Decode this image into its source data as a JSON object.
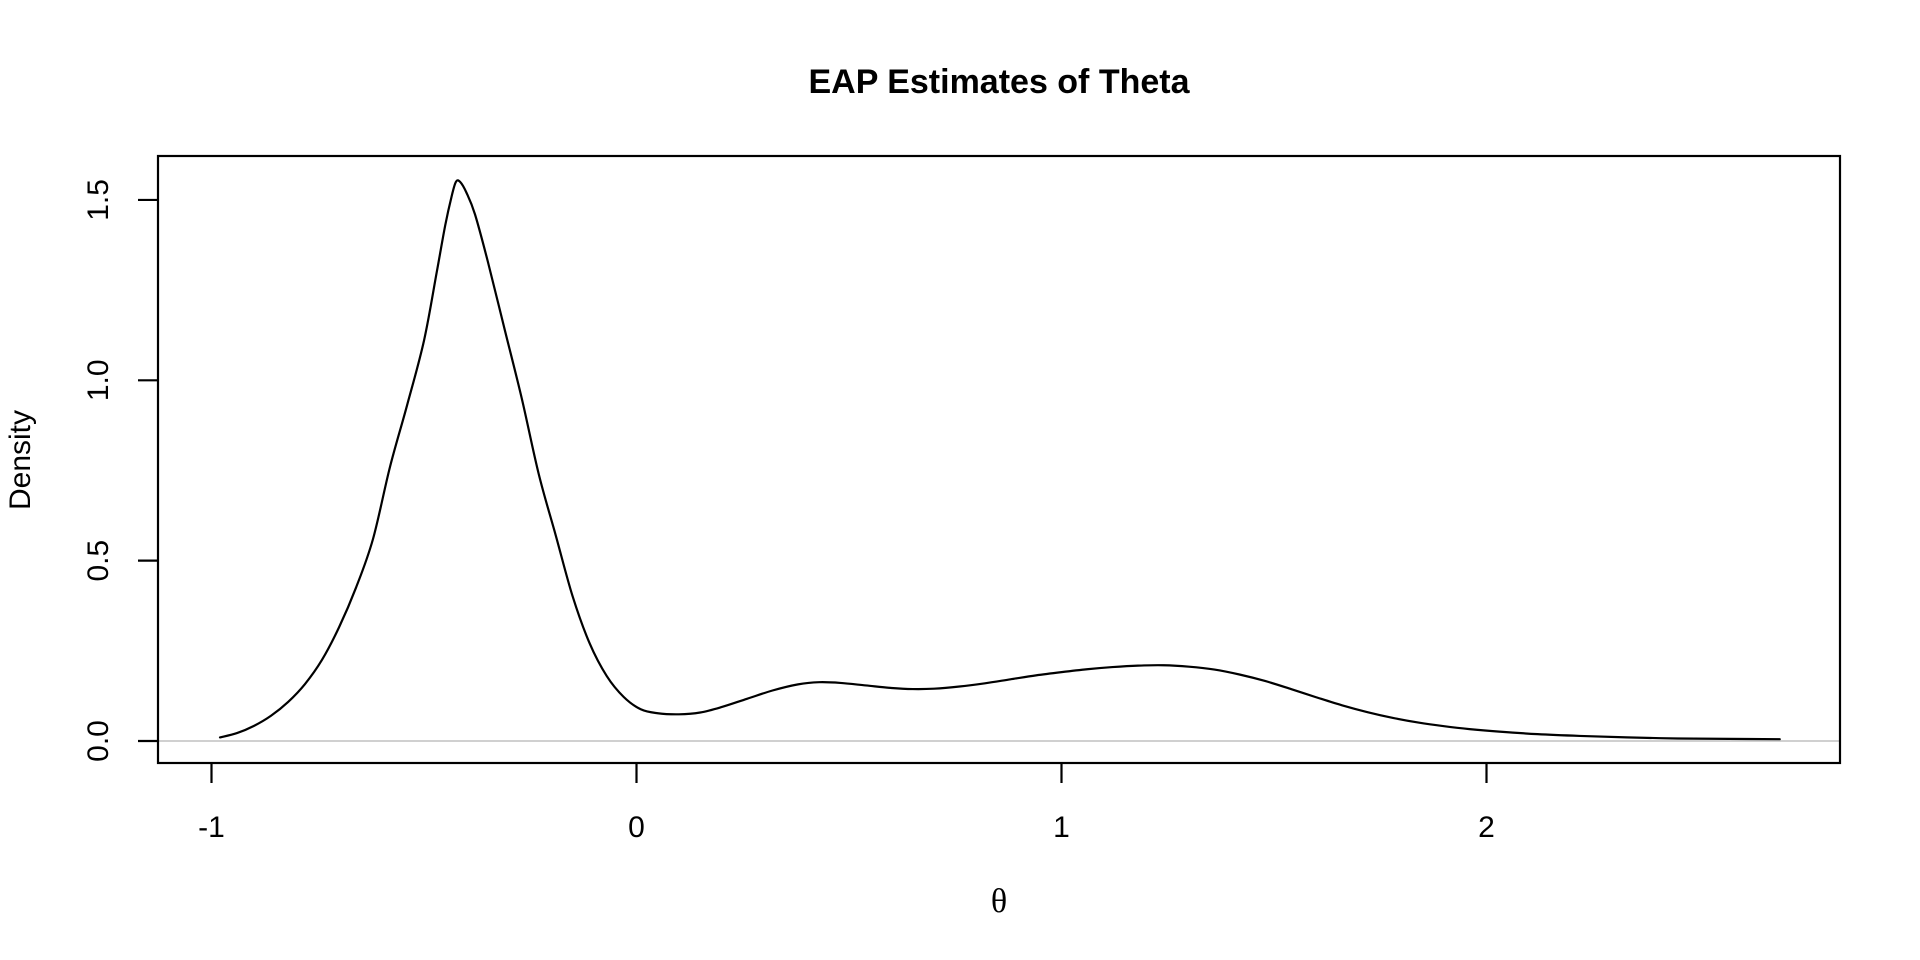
{
  "page": {
    "background_color": "#ffffff"
  },
  "chart_data": {
    "type": "line",
    "subtype": "kernel-density",
    "title": "EAP Estimates of Theta",
    "xlabel": "θ",
    "ylabel": "Density",
    "grid": false,
    "legend": null,
    "xlim": [
      -1.13,
      2.83
    ],
    "ylim": [
      -0.064,
      1.62
    ],
    "x_ticks": [
      -1,
      0,
      1,
      2
    ],
    "x_tick_labels": [
      "-1",
      "0",
      "1",
      "2"
    ],
    "y_ticks": [
      0.0,
      0.5,
      1.0,
      1.5
    ],
    "y_tick_labels": [
      "0.0",
      "0.5",
      "1.0",
      "1.5"
    ],
    "baseline": {
      "y": 0,
      "color": "#d0d0d0"
    },
    "colors": {
      "curve": "#000000",
      "axis": "#000000",
      "text": "#000000",
      "background": "#ffffff"
    },
    "series": [
      {
        "name": "density",
        "points": [
          [
            -0.98,
            0.01
          ],
          [
            -0.94,
            0.022
          ],
          [
            -0.9,
            0.042
          ],
          [
            -0.86,
            0.07
          ],
          [
            -0.82,
            0.108
          ],
          [
            -0.78,
            0.158
          ],
          [
            -0.74,
            0.225
          ],
          [
            -0.7,
            0.315
          ],
          [
            -0.66,
            0.425
          ],
          [
            -0.62,
            0.56
          ],
          [
            -0.58,
            0.76
          ],
          [
            -0.54,
            0.93
          ],
          [
            -0.5,
            1.11
          ],
          [
            -0.47,
            1.3
          ],
          [
            -0.45,
            1.43
          ],
          [
            -0.435,
            1.51
          ],
          [
            -0.425,
            1.55
          ],
          [
            -0.415,
            1.55
          ],
          [
            -0.4,
            1.52
          ],
          [
            -0.38,
            1.46
          ],
          [
            -0.35,
            1.33
          ],
          [
            -0.31,
            1.14
          ],
          [
            -0.27,
            0.95
          ],
          [
            -0.23,
            0.74
          ],
          [
            -0.19,
            0.57
          ],
          [
            -0.15,
            0.4
          ],
          [
            -0.11,
            0.27
          ],
          [
            -0.07,
            0.18
          ],
          [
            -0.03,
            0.122
          ],
          [
            0.01,
            0.088
          ],
          [
            0.05,
            0.077
          ],
          [
            0.1,
            0.074
          ],
          [
            0.15,
            0.079
          ],
          [
            0.2,
            0.094
          ],
          [
            0.26,
            0.117
          ],
          [
            0.32,
            0.14
          ],
          [
            0.38,
            0.157
          ],
          [
            0.43,
            0.163
          ],
          [
            0.48,
            0.161
          ],
          [
            0.54,
            0.154
          ],
          [
            0.6,
            0.147
          ],
          [
            0.65,
            0.144
          ],
          [
            0.7,
            0.145
          ],
          [
            0.76,
            0.151
          ],
          [
            0.82,
            0.16
          ],
          [
            0.88,
            0.171
          ],
          [
            0.94,
            0.182
          ],
          [
            1.0,
            0.191
          ],
          [
            1.06,
            0.199
          ],
          [
            1.12,
            0.205
          ],
          [
            1.18,
            0.209
          ],
          [
            1.24,
            0.21
          ],
          [
            1.3,
            0.206
          ],
          [
            1.36,
            0.198
          ],
          [
            1.42,
            0.184
          ],
          [
            1.48,
            0.166
          ],
          [
            1.54,
            0.144
          ],
          [
            1.6,
            0.121
          ],
          [
            1.66,
            0.099
          ],
          [
            1.72,
            0.08
          ],
          [
            1.78,
            0.064
          ],
          [
            1.84,
            0.051
          ],
          [
            1.9,
            0.041
          ],
          [
            1.96,
            0.033
          ],
          [
            2.03,
            0.026
          ],
          [
            2.12,
            0.019
          ],
          [
            2.22,
            0.014
          ],
          [
            2.33,
            0.01
          ],
          [
            2.45,
            0.007
          ],
          [
            2.57,
            0.006
          ],
          [
            2.69,
            0.005
          ]
        ]
      }
    ]
  }
}
